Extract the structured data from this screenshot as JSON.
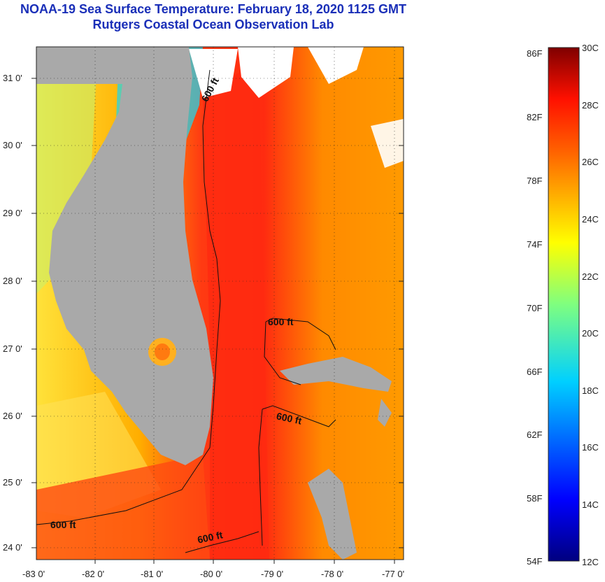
{
  "header": {
    "title_line1": "NOAA-19 Sea Surface Temperature:  February 18, 2020 1125 GMT",
    "title_line2": "Rutgers Coastal Ocean Observation Lab"
  },
  "map": {
    "latitude_labels": [
      "31 0'",
      "30 0'",
      "29 0'",
      "28 0'",
      "27 0'",
      "26 0'",
      "25 0'",
      "24 0'"
    ],
    "longitude_labels": [
      "-83 0'",
      "-82 0'",
      "-81 0'",
      "-80 0'",
      "-79 0'",
      "-78 0'",
      "-77 0'"
    ],
    "contour_labels": [
      "600 ft",
      "600 ft",
      "600 ft",
      "600 ft",
      "600 ft"
    ],
    "colors": {
      "land": "#a9a9a9",
      "warm": "#ff2a10",
      "mid": "#ff8a00",
      "cool": "#ffe000",
      "cold": "#1aa0ff",
      "cloud": "#ffffff"
    }
  },
  "colorbar": {
    "fahrenheit_labels": [
      "86F",
      "82F",
      "78F",
      "74F",
      "70F",
      "66F",
      "62F",
      "58F",
      "54F"
    ],
    "celsius_labels": [
      "30C",
      "28C",
      "26C",
      "24C",
      "22C",
      "20C",
      "18C",
      "16C",
      "14C",
      "12C"
    ],
    "min_c": 12,
    "max_c": 30
  }
}
